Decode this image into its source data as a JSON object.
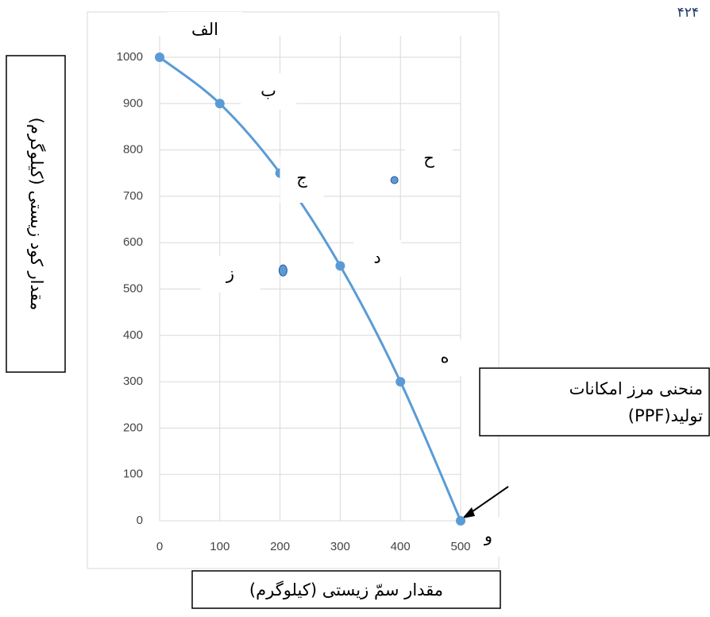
{
  "chart_data": {
    "type": "line",
    "page_number": "۴۲۴",
    "x_label": "مقدار سمّ زیستی (کیلوگرم)",
    "y_label": "مقدار کود زیستی (کیلوگرم)",
    "annotation": [
      "منحنی مرز امکانات",
      "تولید(PPF)"
    ],
    "x": [
      0,
      100,
      200,
      300,
      400,
      500
    ],
    "values": [
      1000,
      900,
      750,
      550,
      300,
      0
    ],
    "point_labels": [
      "الف",
      "ب",
      "ج",
      "د",
      "ه",
      "و"
    ],
    "color": "#5b9bd5",
    "extra_points": {
      "x": [
        390,
        205
      ],
      "values": [
        735,
        540
      ],
      "point_labels": [
        "ح",
        "ز"
      ],
      "color": "#5b9bd5"
    },
    "xlim": [
      0,
      500
    ],
    "xticks": [
      0,
      100,
      200,
      300,
      400,
      500
    ],
    "ylim": [
      0,
      1000
    ],
    "yticks": [
      0,
      100,
      200,
      300,
      400,
      500,
      600,
      700,
      800,
      900,
      1000
    ],
    "grid": true
  }
}
